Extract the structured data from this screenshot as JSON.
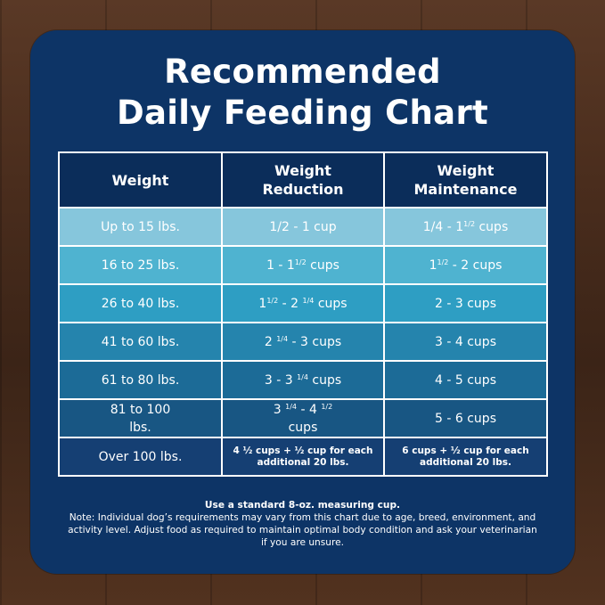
{
  "title": {
    "line1": "Recommended",
    "line2": "Daily Feeding Chart"
  },
  "table": {
    "headers": {
      "weight": "Weight",
      "reduction": [
        "Weight",
        "Reduction"
      ],
      "maintenance": [
        "Weight",
        "Maintenance"
      ]
    },
    "rows": [
      {
        "weight": "Up to 15 lbs.",
        "reduction": [
          "1/2 - 1 cup"
        ],
        "maintenance": [
          "1/4 - 1",
          "1/2",
          " cups"
        ]
      },
      {
        "weight": "16 to 25 lbs.",
        "reduction": [
          "1 - 1",
          "1/2",
          " cups"
        ],
        "maintenance": [
          "1",
          "1/2",
          " - 2 cups"
        ]
      },
      {
        "weight": "26 to 40 lbs.",
        "reduction": [
          "1",
          "1/2",
          " - 2 ",
          "1/4",
          " cups"
        ],
        "maintenance": [
          "2 - 3 cups"
        ]
      },
      {
        "weight": "41 to 60 lbs.",
        "reduction": [
          "2 ",
          "1/4",
          " - 3 cups"
        ],
        "maintenance": [
          "3 - 4 cups"
        ]
      },
      {
        "weight": "61 to 80 lbs.",
        "reduction": [
          "3 - 3 ",
          "1/4",
          " cups"
        ],
        "maintenance": [
          "4 - 5 cups"
        ]
      },
      {
        "weight": [
          "81 to 100",
          "lbs."
        ],
        "reduction": [
          "3 ",
          "1/4",
          " - 4 ",
          "1/2",
          "cups"
        ],
        "maintenance": [
          "5 - 6 cups"
        ]
      },
      {
        "weight": "Over 100 lbs.",
        "reduction": [
          "4 ½ cups  + ½ cup for each",
          "additional 20 lbs."
        ],
        "maintenance": [
          "6 cups  + ½ cup for each",
          "additional 20 lbs."
        ]
      }
    ]
  },
  "notes": {
    "instruction": "Use a standard 8-oz. measuring cup.",
    "disclaimer": "Note: Individual dog’s requirements may vary from this chart due to age, breed, environment, and activity level. Adjust food as required to maintain optimal body condition and ask your veterinarian if you are unsure."
  },
  "colors": {
    "card": "#0d3466",
    "header": "#0b2d5a",
    "rows": [
      "#86c6dc",
      "#4fb3d0",
      "#2e9ec3",
      "#2584ad",
      "#1c6b97",
      "#185683",
      "#153f73"
    ]
  }
}
